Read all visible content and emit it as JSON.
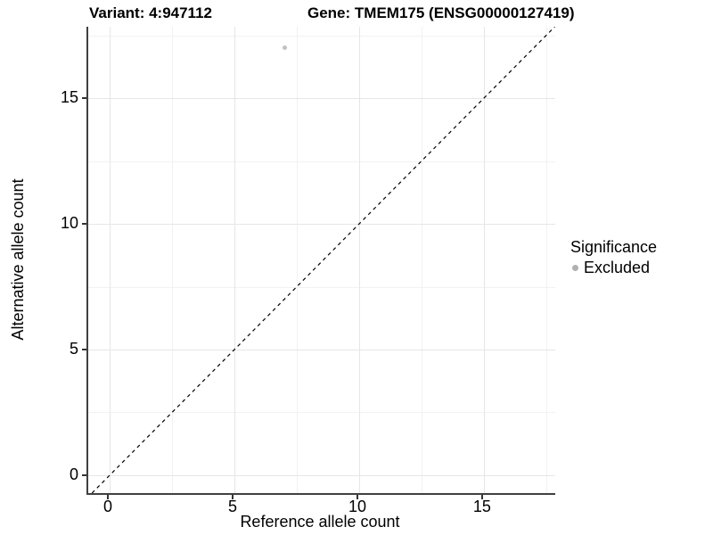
{
  "title": {
    "variant": "Variant: 4:947112",
    "gene": "Gene: TMEM175 (ENSG00000127419)"
  },
  "chart_data": {
    "type": "scatter",
    "title": "Variant: 4:947112   Gene: TMEM175 (ENSG00000127419)",
    "xlabel": "Reference allele count",
    "ylabel": "Alternative allele count",
    "xlim": [
      -0.86,
      17.86
    ],
    "ylim": [
      -0.71,
      17.84
    ],
    "x_ticks": [
      0,
      5,
      10,
      15
    ],
    "y_ticks": [
      0,
      5,
      10,
      15
    ],
    "x_minor_ticks": [
      2.5,
      7.5,
      12.5,
      17.5
    ],
    "y_minor_ticks": [
      2.5,
      7.5,
      12.5,
      17.5
    ],
    "grid": true,
    "series": [
      {
        "name": "Excluded",
        "color": "#c2c2c2",
        "point_radius": 2.5,
        "points": [
          {
            "x": 7,
            "y": 17
          }
        ]
      }
    ],
    "reference_line": {
      "slope": 1,
      "intercept": 0,
      "style": "dashed",
      "color": "#000000"
    },
    "legend": {
      "title": "Significance",
      "position": "right",
      "entries": [
        {
          "label": "Excluded",
          "color": "#b0b0b0"
        }
      ]
    },
    "colors": {
      "axis_line": "#404040",
      "grid_major": "#e6e6e6",
      "grid_minor": "#f2f2f2"
    }
  }
}
